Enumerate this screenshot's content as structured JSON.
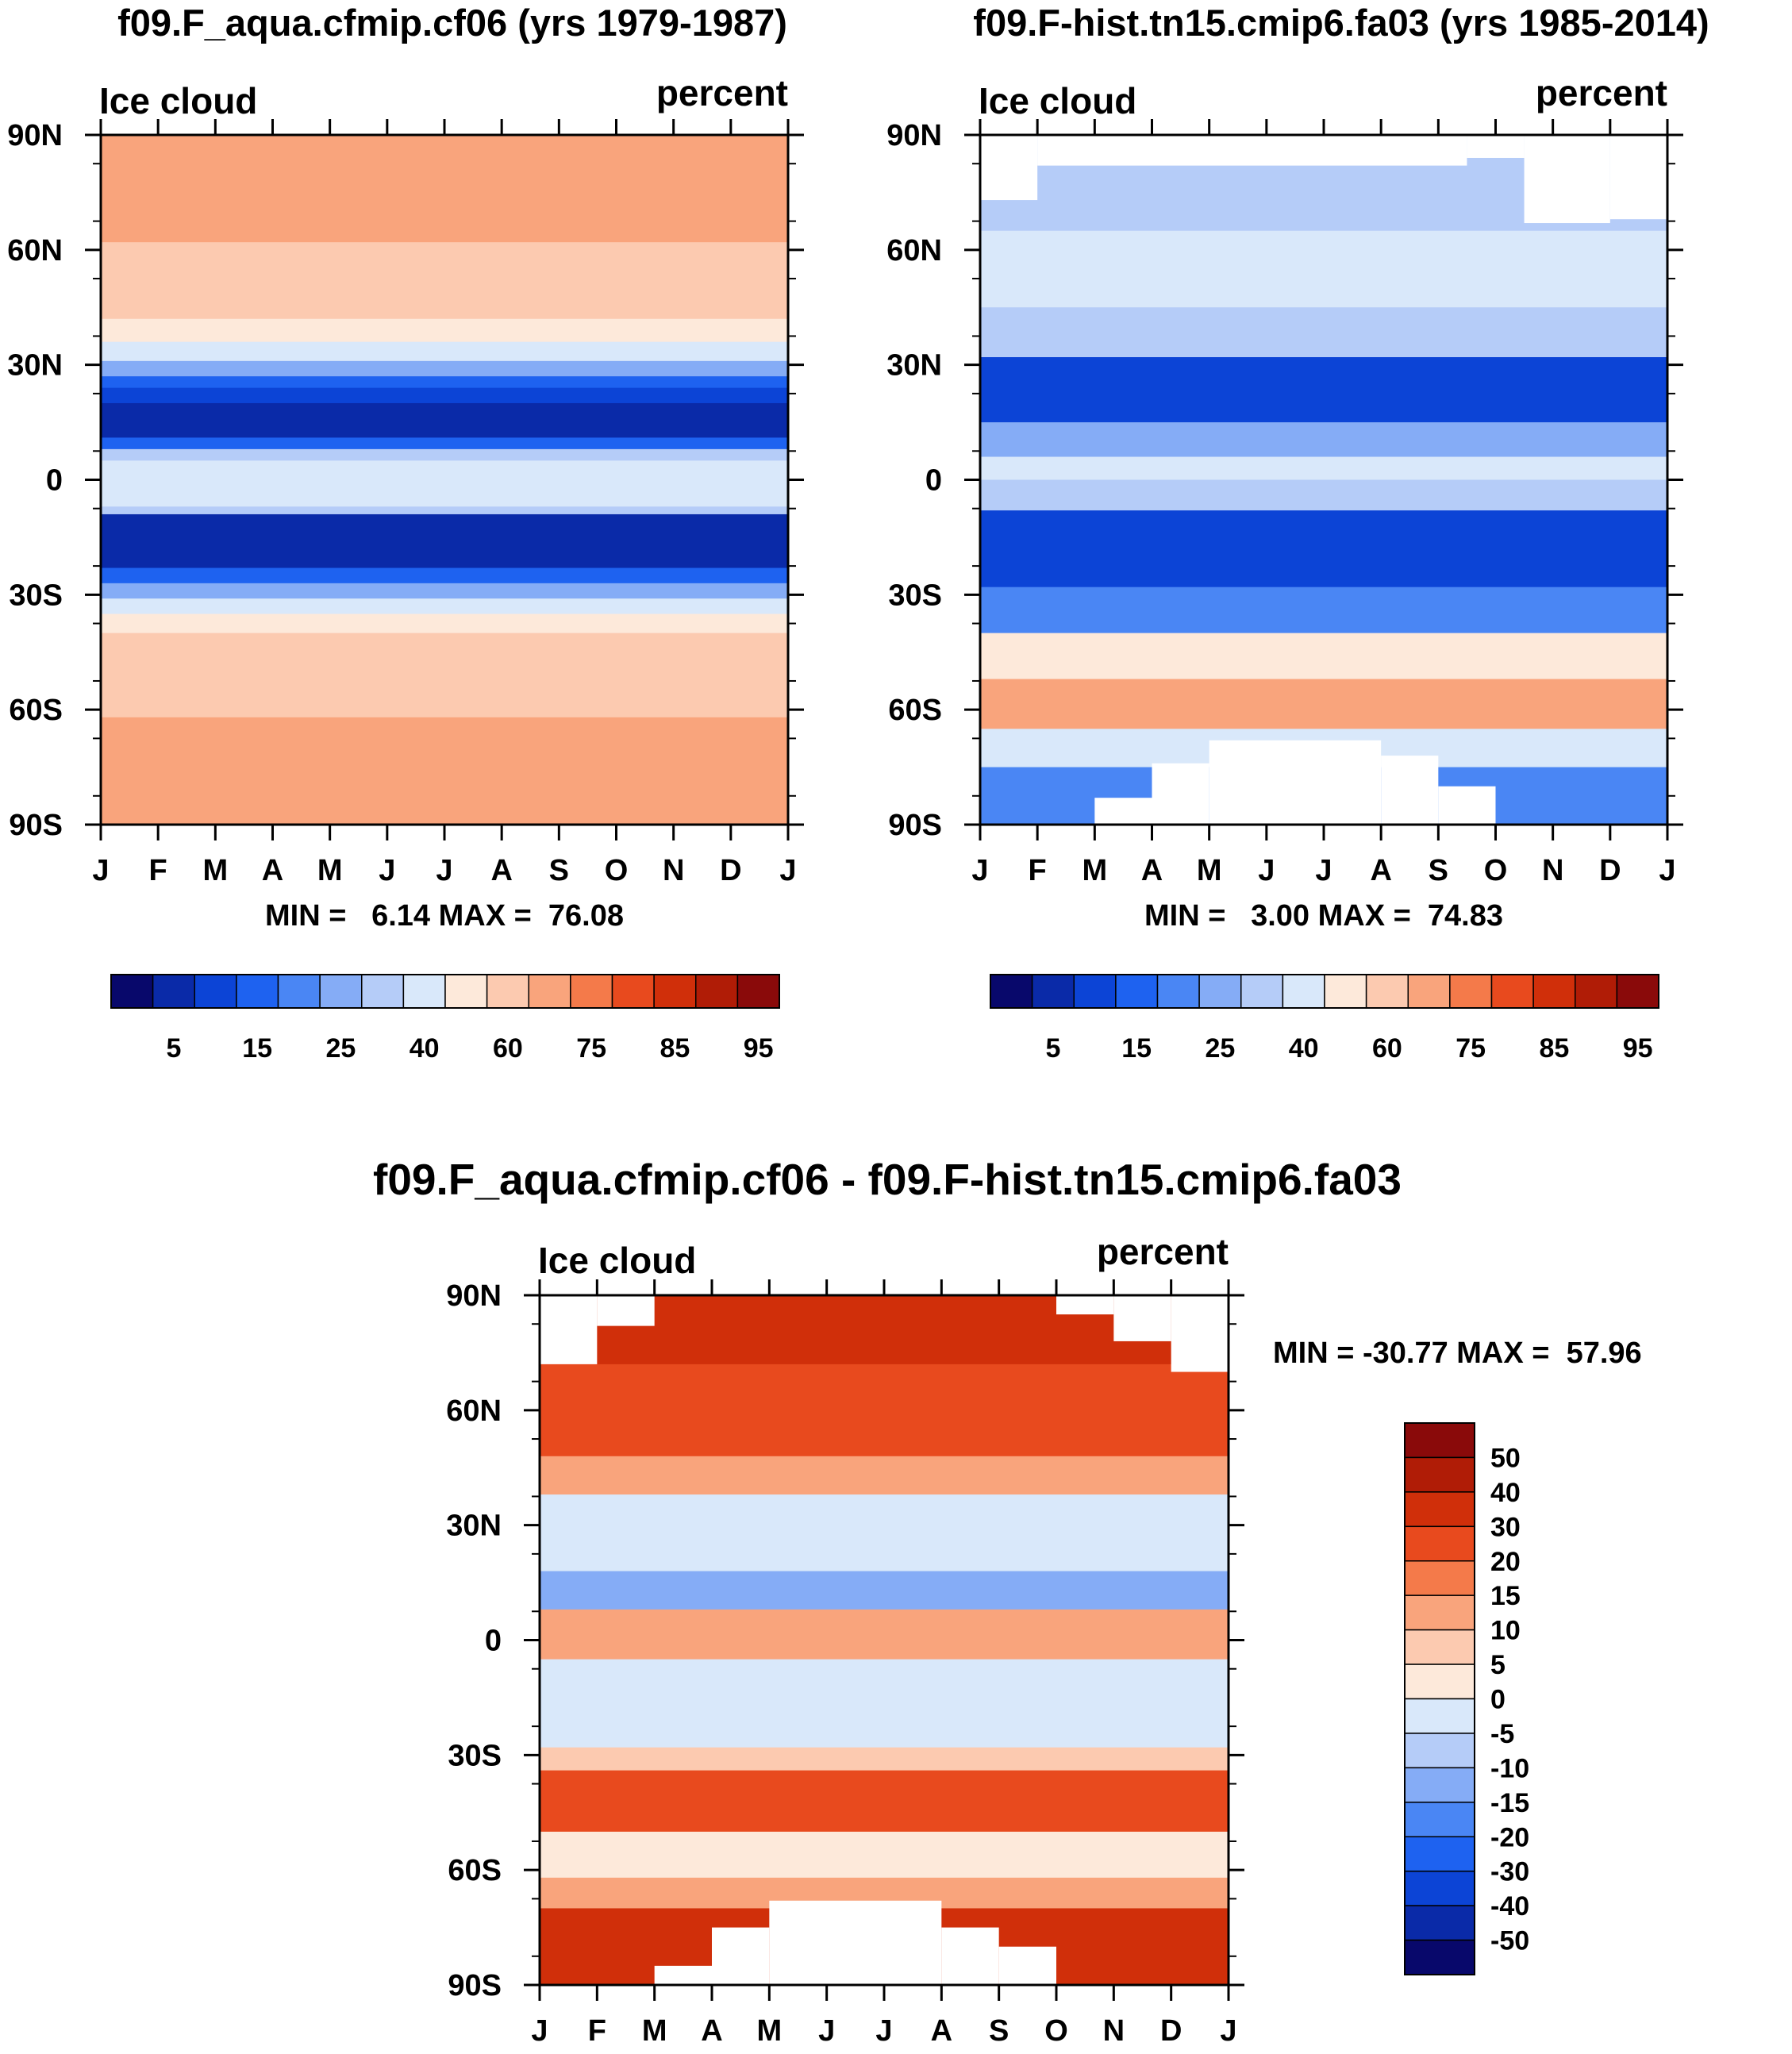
{
  "chart_data": [
    {
      "type": "heatmap",
      "panel": "model-climatology",
      "title": "f09.F_aqua.cfmip.cf06 (yrs 1979-1987)",
      "left_label": "Ice cloud",
      "right_label": "percent",
      "min_max_text": "MIN =   6.14 MAX =  76.08",
      "x_ticks": [
        "J",
        "F",
        "M",
        "A",
        "M",
        "J",
        "J",
        "A",
        "S",
        "O",
        "N",
        "D",
        "J"
      ],
      "y_ticks": [
        "90N",
        "60N",
        "30N",
        "0",
        "30S",
        "60S",
        "90S"
      ],
      "ylim": [
        -90,
        90
      ],
      "latitude_bands": [
        {
          "from": 90,
          "to": 62,
          "value": 70
        },
        {
          "from": 62,
          "to": 42,
          "value": 62
        },
        {
          "from": 42,
          "to": 36,
          "value": 58
        },
        {
          "from": 36,
          "to": 31,
          "value": 45
        },
        {
          "from": 31,
          "to": 27,
          "value": 28
        },
        {
          "from": 27,
          "to": 24,
          "value": 18
        },
        {
          "from": 24,
          "to": 20,
          "value": 12
        },
        {
          "from": 20,
          "to": 11,
          "value": 7
        },
        {
          "from": 11,
          "to": 8,
          "value": 18
        },
        {
          "from": 8,
          "to": 5,
          "value": 32
        },
        {
          "from": 5,
          "to": -7,
          "value": 48
        },
        {
          "from": -7,
          "to": -9,
          "value": 30
        },
        {
          "from": -9,
          "to": -23,
          "value": 8
        },
        {
          "from": -23,
          "to": -27,
          "value": 15
        },
        {
          "from": -27,
          "to": -31,
          "value": 28
        },
        {
          "from": -31,
          "to": -35,
          "value": 45
        },
        {
          "from": -35,
          "to": -40,
          "value": 58
        },
        {
          "from": -40,
          "to": -62,
          "value": 62
        },
        {
          "from": -62,
          "to": -90,
          "value": 70
        }
      ],
      "colorbar_levels": [
        "5",
        "15",
        "25",
        "40",
        "60",
        "75",
        "85",
        "95"
      ]
    },
    {
      "type": "heatmap",
      "panel": "reference-climatology",
      "title": "f09.F-hist.tn15.cmip6.fa03 (yrs 1985-2014)",
      "left_label": "Ice cloud",
      "right_label": "percent",
      "min_max_text": "MIN =   3.00 MAX =  74.83",
      "x_ticks": [
        "J",
        "F",
        "M",
        "A",
        "M",
        "J",
        "J",
        "A",
        "S",
        "O",
        "N",
        "D",
        "J"
      ],
      "y_ticks": [
        "90N",
        "60N",
        "30N",
        "0",
        "30S",
        "60S",
        "90S"
      ],
      "ylim": [
        -90,
        90
      ],
      "latitude_bands": [
        {
          "from": 90,
          "to": 65,
          "value": 38
        },
        {
          "from": 65,
          "to": 45,
          "value": 45
        },
        {
          "from": 45,
          "to": 32,
          "value": 32
        },
        {
          "from": 32,
          "to": 15,
          "value": 12
        },
        {
          "from": 15,
          "to": 6,
          "value": 28
        },
        {
          "from": 6,
          "to": 0,
          "value": 45
        },
        {
          "from": 0,
          "to": -8,
          "value": 32
        },
        {
          "from": -8,
          "to": -28,
          "value": 12
        },
        {
          "from": -28,
          "to": -40,
          "value": 22
        },
        {
          "from": -40,
          "to": -52,
          "value": 50
        },
        {
          "from": -52,
          "to": -65,
          "value": 68
        },
        {
          "from": -65,
          "to": -75,
          "value": 48
        },
        {
          "from": -75,
          "to": -90,
          "value": 22
        }
      ],
      "colorbar_levels": [
        "5",
        "15",
        "25",
        "40",
        "60",
        "75",
        "85",
        "95"
      ]
    },
    {
      "type": "heatmap",
      "panel": "difference",
      "title": "f09.F_aqua.cfmip.cf06 - f09.F-hist.tn15.cmip6.fa03",
      "left_label": "Ice cloud",
      "right_label": "percent",
      "min_max_text": "MIN = -30.77 MAX =  57.96",
      "x_ticks": [
        "J",
        "F",
        "M",
        "A",
        "M",
        "J",
        "J",
        "A",
        "S",
        "O",
        "N",
        "D",
        "J"
      ],
      "y_ticks": [
        "90N",
        "60N",
        "30N",
        "0",
        "30S",
        "60S",
        "90S"
      ],
      "ylim": [
        -90,
        90
      ],
      "latitude_bands": [
        {
          "from": 90,
          "to": 72,
          "value": 35
        },
        {
          "from": 72,
          "to": 48,
          "value": 20
        },
        {
          "from": 48,
          "to": 38,
          "value": 12
        },
        {
          "from": 38,
          "to": 18,
          "value": -3
        },
        {
          "from": 18,
          "to": 8,
          "value": -15
        },
        {
          "from": 8,
          "to": -5,
          "value": 12
        },
        {
          "from": -5,
          "to": -28,
          "value": -5
        },
        {
          "from": -28,
          "to": -34,
          "value": 5
        },
        {
          "from": -34,
          "to": -50,
          "value": 20
        },
        {
          "from": -50,
          "to": -62,
          "value": 3
        },
        {
          "from": -62,
          "to": -70,
          "value": 12
        },
        {
          "from": -70,
          "to": -90,
          "value": 35
        }
      ],
      "colorbar_levels": [
        "50",
        "40",
        "30",
        "20",
        "15",
        "10",
        "5",
        "0",
        "-5",
        "-10",
        "-15",
        "-20",
        "-30",
        "-40",
        "-50"
      ]
    }
  ],
  "colors": {
    "palette": [
      "#08086b",
      "#0a2aa8",
      "#0c44d6",
      "#1e62f0",
      "#4a86f4",
      "#85acf6",
      "#b5ccf8",
      "#d9e8fa",
      "#fde9da",
      "#fccab0",
      "#f9a47c",
      "#f47a4a",
      "#e84a1e",
      "#d02f0a",
      "#b01c06",
      "#8a0a0a"
    ],
    "missing": "#ffffff"
  }
}
